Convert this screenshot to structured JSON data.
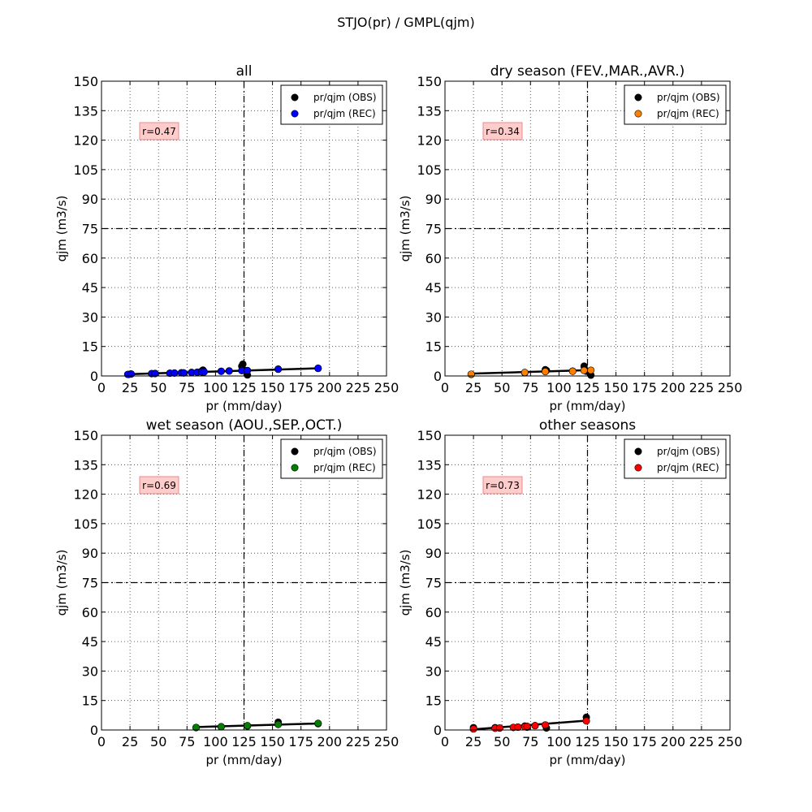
{
  "figure": {
    "title": "STJO(pr) / GMPL(qjm)"
  },
  "chart_data": [
    {
      "type": "scatter",
      "title": "all",
      "xlabel": "pr (mm/day)",
      "ylabel": "qjm (m3/s)",
      "xlim": [
        0,
        250
      ],
      "ylim": [
        0,
        150
      ],
      "xticks": [
        "0",
        "25",
        "50",
        "75",
        "100",
        "125",
        "150",
        "175",
        "200",
        "225",
        "250"
      ],
      "yticks": [
        "0",
        "15",
        "30",
        "45",
        "60",
        "75",
        "90",
        "105",
        "120",
        "135",
        "150"
      ],
      "grid": true,
      "legend_position": "top-right",
      "annotation": "r=0.47",
      "ref_lines": {
        "x": 125,
        "y": 75
      },
      "series": [
        {
          "name": "pr/qjm (OBS)",
          "color": "#000000",
          "points": [
            [
              24,
              0.8
            ],
            [
              26,
              1.0
            ],
            [
              44,
              1.2
            ],
            [
              47,
              1.3
            ],
            [
              60,
              1.4
            ],
            [
              64,
              1.5
            ],
            [
              70,
              1.6
            ],
            [
              72,
              1.5
            ],
            [
              79,
              1.8
            ],
            [
              84,
              1.9
            ],
            [
              88,
              2.5
            ],
            [
              89,
              3.0
            ],
            [
              90,
              2.2
            ],
            [
              105,
              2.4
            ],
            [
              112,
              2.6
            ],
            [
              123,
              5.0
            ],
            [
              124,
              6.0
            ],
            [
              126,
              2.8
            ],
            [
              128,
              0.5
            ],
            [
              155,
              3.5
            ],
            [
              190,
              3.8
            ]
          ]
        },
        {
          "name": "pr/qjm (REC)",
          "color": "#0000ff",
          "points": [
            [
              23,
              0.8
            ],
            [
              26,
              1.0
            ],
            [
              44,
              1.2
            ],
            [
              47,
              1.2
            ],
            [
              60,
              1.4
            ],
            [
              64,
              1.5
            ],
            [
              70,
              1.6
            ],
            [
              72,
              1.6
            ],
            [
              79,
              1.8
            ],
            [
              84,
              1.9
            ],
            [
              88,
              2.0
            ],
            [
              90,
              2.0
            ],
            [
              105,
              2.4
            ],
            [
              112,
              2.5
            ],
            [
              123,
              2.7
            ],
            [
              128,
              2.8
            ],
            [
              155,
              3.4
            ],
            [
              190,
              4.0
            ]
          ]
        }
      ],
      "fit": {
        "x": [
          23,
          190
        ],
        "y": [
          0.9,
          3.9
        ]
      }
    },
    {
      "type": "scatter",
      "title": "dry season (FEV.,MAR.,AVR.)",
      "xlabel": "pr (mm/day)",
      "ylabel": "qjm (m3/s)",
      "xlim": [
        0,
        250
      ],
      "ylim": [
        0,
        150
      ],
      "xticks": [
        "0",
        "25",
        "50",
        "75",
        "100",
        "125",
        "150",
        "175",
        "200",
        "225",
        "250"
      ],
      "yticks": [
        "0",
        "15",
        "30",
        "45",
        "60",
        "75",
        "90",
        "105",
        "120",
        "135",
        "150"
      ],
      "grid": true,
      "legend_position": "top-right",
      "annotation": "r=0.34",
      "ref_lines": {
        "x": 125,
        "y": 75
      },
      "series": [
        {
          "name": "pr/qjm (OBS)",
          "color": "#000000",
          "points": [
            [
              23,
              0.8
            ],
            [
              70,
              1.6
            ],
            [
              88,
              3.2
            ],
            [
              89,
              2.8
            ],
            [
              112,
              2.5
            ],
            [
              122,
              5.0
            ],
            [
              124,
              2.4
            ],
            [
              128,
              0.4
            ]
          ]
        },
        {
          "name": "pr/qjm (REC)",
          "color": "#ff8000",
          "points": [
            [
              23,
              0.9
            ],
            [
              70,
              1.8
            ],
            [
              88,
              2.2
            ],
            [
              112,
              2.4
            ],
            [
              122,
              2.8
            ],
            [
              128,
              2.9
            ]
          ]
        }
      ],
      "fit": {
        "x": [
          23,
          128
        ],
        "y": [
          1.2,
          3.0
        ]
      }
    },
    {
      "type": "scatter",
      "title": "wet season (AOU.,SEP.,OCT.)",
      "xlabel": "pr (mm/day)",
      "ylabel": "qjm (m3/s)",
      "xlim": [
        0,
        250
      ],
      "ylim": [
        0,
        150
      ],
      "xticks": [
        "0",
        "25",
        "50",
        "75",
        "100",
        "125",
        "150",
        "175",
        "200",
        "225",
        "250"
      ],
      "yticks": [
        "0",
        "15",
        "30",
        "45",
        "60",
        "75",
        "90",
        "105",
        "120",
        "135",
        "150"
      ],
      "grid": true,
      "legend_position": "top-right",
      "annotation": "r=0.69",
      "ref_lines": {
        "x": 125,
        "y": 75
      },
      "series": [
        {
          "name": "pr/qjm (OBS)",
          "color": "#000000",
          "points": [
            [
              83,
              1.2
            ],
            [
              105,
              1.6
            ],
            [
              128,
              2.0
            ],
            [
              155,
              4.0
            ],
            [
              190,
              3.2
            ]
          ]
        },
        {
          "name": "pr/qjm (REC)",
          "color": "#007f00",
          "points": [
            [
              83,
              1.3
            ],
            [
              105,
              1.7
            ],
            [
              128,
              2.2
            ],
            [
              155,
              2.8
            ],
            [
              190,
              3.4
            ]
          ]
        }
      ],
      "fit": {
        "x": [
          83,
          190
        ],
        "y": [
          1.5,
          3.3
        ]
      }
    },
    {
      "type": "scatter",
      "title": "other seasons",
      "xlabel": "pr (mm/day)",
      "ylabel": "qjm (m3/s)",
      "xlim": [
        0,
        250
      ],
      "ylim": [
        0,
        150
      ],
      "xticks": [
        "0",
        "25",
        "50",
        "75",
        "100",
        "125",
        "150",
        "175",
        "200",
        "225",
        "250"
      ],
      "yticks": [
        "0",
        "15",
        "30",
        "45",
        "60",
        "75",
        "90",
        "105",
        "120",
        "135",
        "150"
      ],
      "grid": true,
      "legend_position": "top-right",
      "annotation": "r=0.73",
      "ref_lines": {
        "x": 125,
        "y": 75
      },
      "series": [
        {
          "name": "pr/qjm (OBS)",
          "color": "#000000",
          "points": [
            [
              25,
              1.2
            ],
            [
              44,
              1.2
            ],
            [
              48,
              1.0
            ],
            [
              60,
              1.3
            ],
            [
              64,
              1.4
            ],
            [
              70,
              2.0
            ],
            [
              72,
              1.4
            ],
            [
              79,
              2.2
            ],
            [
              88,
              2.5
            ],
            [
              89,
              1.0
            ],
            [
              124,
              6.5
            ]
          ]
        },
        {
          "name": "pr/qjm (REC)",
          "color": "#ff0000",
          "points": [
            [
              25,
              0.5
            ],
            [
              44,
              0.9
            ],
            [
              48,
              1.0
            ],
            [
              60,
              1.3
            ],
            [
              64,
              1.5
            ],
            [
              70,
              1.7
            ],
            [
              72,
              1.9
            ],
            [
              79,
              2.2
            ],
            [
              88,
              2.6
            ],
            [
              124,
              4.6
            ]
          ]
        }
      ],
      "fit": {
        "x": [
          25,
          125
        ],
        "y": [
          0.3,
          4.8
        ]
      }
    }
  ]
}
